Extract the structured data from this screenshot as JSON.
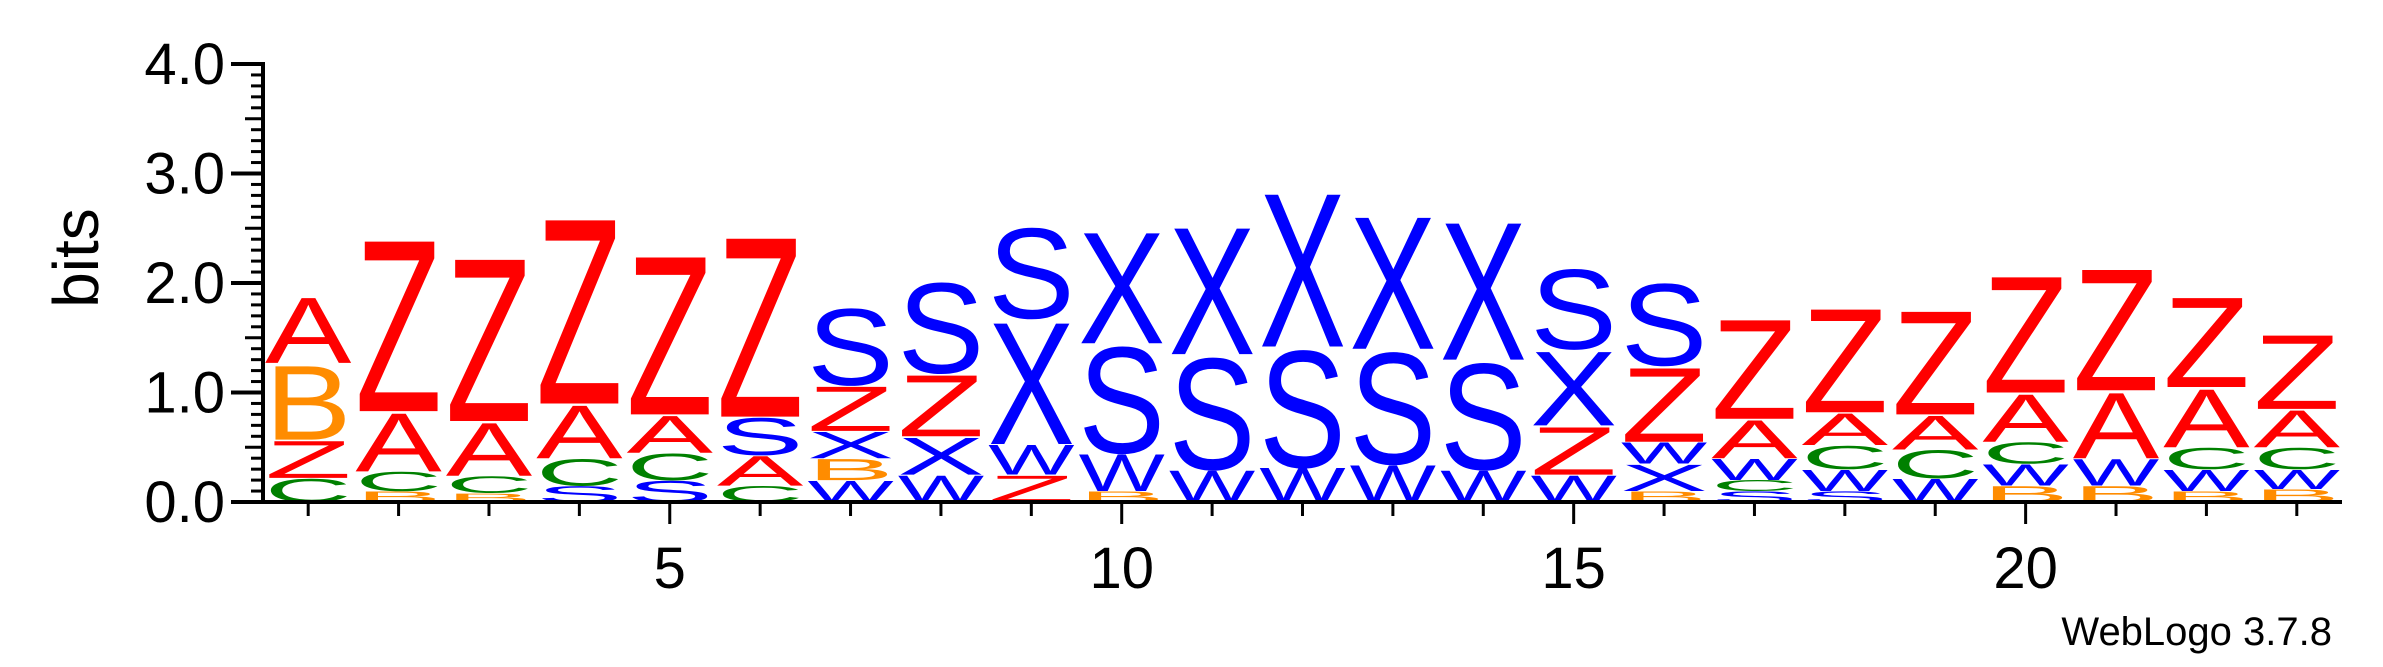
{
  "chart_data": {
    "type": "sequence-logo",
    "ylabel": "bits",
    "ylim": [
      0,
      4.0
    ],
    "y_ticks": [
      "0.0",
      "1.0",
      "2.0",
      "3.0",
      "4.0"
    ],
    "x_ticks": [
      5,
      10,
      15,
      20
    ],
    "positions": [
      1,
      23
    ],
    "credit": "WebLogo 3.7.8",
    "colors": {
      "Z": "#ff0000",
      "A": "#ff0000",
      "X": "#0000ff",
      "S": "#0000ff",
      "W": "#0000ff",
      "C": "#008000",
      "B": "#ff8c00"
    },
    "columns": [
      {
        "pos": 1,
        "stack": [
          {
            "l": "C",
            "h": 0.22
          },
          {
            "l": "Z",
            "h": 0.35
          },
          {
            "l": "B",
            "h": 0.7
          },
          {
            "l": "A",
            "h": 0.62
          }
        ]
      },
      {
        "pos": 2,
        "stack": [
          {
            "l": "B",
            "h": 0.1
          },
          {
            "l": "C",
            "h": 0.18
          },
          {
            "l": "A",
            "h": 0.55
          },
          {
            "l": "Z",
            "h": 1.62
          }
        ]
      },
      {
        "pos": 3,
        "stack": [
          {
            "l": "B",
            "h": 0.08
          },
          {
            "l": "C",
            "h": 0.16
          },
          {
            "l": "A",
            "h": 0.5
          },
          {
            "l": "Z",
            "h": 1.54
          }
        ]
      },
      {
        "pos": 4,
        "stack": [
          {
            "l": "S",
            "h": 0.15
          },
          {
            "l": "C",
            "h": 0.25
          },
          {
            "l": "A",
            "h": 0.5
          },
          {
            "l": "Z",
            "h": 1.75
          }
        ]
      },
      {
        "pos": 5,
        "stack": [
          {
            "l": "S",
            "h": 0.2
          },
          {
            "l": "C",
            "h": 0.25
          },
          {
            "l": "A",
            "h": 0.35
          },
          {
            "l": "Z",
            "h": 1.5
          }
        ]
      },
      {
        "pos": 6,
        "stack": [
          {
            "l": "C",
            "h": 0.15
          },
          {
            "l": "A",
            "h": 0.28
          },
          {
            "l": "S",
            "h": 0.35
          },
          {
            "l": "Z",
            "h": 1.7
          }
        ]
      },
      {
        "pos": 7,
        "stack": [
          {
            "l": "W",
            "h": 0.2
          },
          {
            "l": "B",
            "h": 0.2
          },
          {
            "l": "X",
            "h": 0.25
          },
          {
            "l": "Z",
            "h": 0.42
          },
          {
            "l": "S",
            "h": 0.72
          }
        ]
      },
      {
        "pos": 8,
        "stack": [
          {
            "l": "W",
            "h": 0.25
          },
          {
            "l": "X",
            "h": 0.35
          },
          {
            "l": "Z",
            "h": 0.58
          },
          {
            "l": "S",
            "h": 0.85
          }
        ]
      },
      {
        "pos": 9,
        "stack": [
          {
            "l": "Z",
            "h": 0.25
          },
          {
            "l": "W",
            "h": 0.28
          },
          {
            "l": "X",
            "h": 1.15
          },
          {
            "l": "S",
            "h": 0.85
          }
        ]
      },
      {
        "pos": 10,
        "stack": [
          {
            "l": "B",
            "h": 0.1
          },
          {
            "l": "W",
            "h": 0.35
          },
          {
            "l": "S",
            "h": 1.0
          },
          {
            "l": "X",
            "h": 1.05
          }
        ]
      },
      {
        "pos": 11,
        "stack": [
          {
            "l": "W",
            "h": 0.3
          },
          {
            "l": "S",
            "h": 1.05
          },
          {
            "l": "X",
            "h": 1.2
          }
        ]
      },
      {
        "pos": 12,
        "stack": [
          {
            "l": "W",
            "h": 0.32
          },
          {
            "l": "S",
            "h": 1.1
          },
          {
            "l": "X",
            "h": 1.45
          }
        ]
      },
      {
        "pos": 13,
        "stack": [
          {
            "l": "W",
            "h": 0.35
          },
          {
            "l": "S",
            "h": 1.05
          },
          {
            "l": "X",
            "h": 1.25
          }
        ]
      },
      {
        "pos": 14,
        "stack": [
          {
            "l": "W",
            "h": 0.3
          },
          {
            "l": "S",
            "h": 1.0
          },
          {
            "l": "X",
            "h": 1.3
          }
        ]
      },
      {
        "pos": 15,
        "stack": [
          {
            "l": "W",
            "h": 0.25
          },
          {
            "l": "Z",
            "h": 0.45
          },
          {
            "l": "X",
            "h": 0.7
          },
          {
            "l": "S",
            "h": 0.75
          }
        ]
      },
      {
        "pos": 16,
        "stack": [
          {
            "l": "B",
            "h": 0.1
          },
          {
            "l": "X",
            "h": 0.25
          },
          {
            "l": "W",
            "h": 0.2
          },
          {
            "l": "Z",
            "h": 0.7
          },
          {
            "l": "S",
            "h": 0.77
          }
        ]
      },
      {
        "pos": 17,
        "stack": [
          {
            "l": "S",
            "h": 0.1
          },
          {
            "l": "C",
            "h": 0.1
          },
          {
            "l": "W",
            "h": 0.2
          },
          {
            "l": "A",
            "h": 0.36
          },
          {
            "l": "Z",
            "h": 0.94
          }
        ]
      },
      {
        "pos": 18,
        "stack": [
          {
            "l": "S",
            "h": 0.1
          },
          {
            "l": "W",
            "h": 0.2
          },
          {
            "l": "C",
            "h": 0.22
          },
          {
            "l": "A",
            "h": 0.3
          },
          {
            "l": "Z",
            "h": 0.98
          }
        ]
      },
      {
        "pos": 19,
        "stack": [
          {
            "l": "W",
            "h": 0.22
          },
          {
            "l": "C",
            "h": 0.26
          },
          {
            "l": "A",
            "h": 0.32
          },
          {
            "l": "Z",
            "h": 0.98
          }
        ]
      },
      {
        "pos": 20,
        "stack": [
          {
            "l": "B",
            "h": 0.15
          },
          {
            "l": "W",
            "h": 0.2
          },
          {
            "l": "C",
            "h": 0.2
          },
          {
            "l": "A",
            "h": 0.45
          },
          {
            "l": "Z",
            "h": 1.1
          }
        ]
      },
      {
        "pos": 21,
        "stack": [
          {
            "l": "B",
            "h": 0.15
          },
          {
            "l": "W",
            "h": 0.25
          },
          {
            "l": "A",
            "h": 0.62
          },
          {
            "l": "Z",
            "h": 1.15
          }
        ]
      },
      {
        "pos": 22,
        "stack": [
          {
            "l": "B",
            "h": 0.1
          },
          {
            "l": "W",
            "h": 0.2
          },
          {
            "l": "C",
            "h": 0.2
          },
          {
            "l": "A",
            "h": 0.55
          },
          {
            "l": "Z",
            "h": 0.85
          }
        ]
      },
      {
        "pos": 23,
        "stack": [
          {
            "l": "B",
            "h": 0.12
          },
          {
            "l": "W",
            "h": 0.18
          },
          {
            "l": "C",
            "h": 0.2
          },
          {
            "l": "A",
            "h": 0.35
          },
          {
            "l": "Z",
            "h": 0.7
          }
        ]
      }
    ]
  }
}
